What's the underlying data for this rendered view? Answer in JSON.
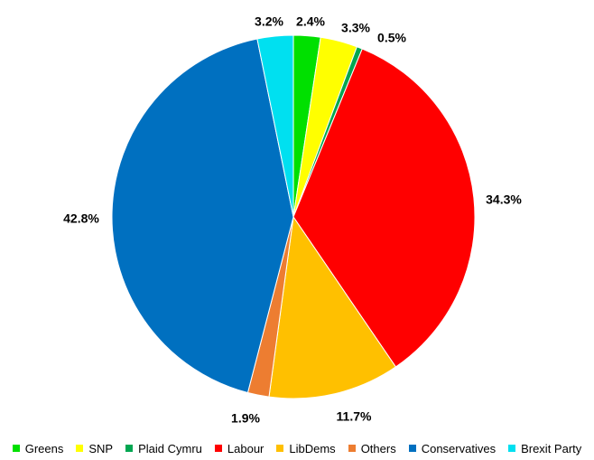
{
  "chart_data": {
    "type": "pie",
    "start_angle_deg": 0,
    "direction": "clockwise",
    "legend_position": "bottom",
    "series": [
      {
        "name": "Greens",
        "value": 2.4,
        "label": "2.4%",
        "color": "#00e000"
      },
      {
        "name": "SNP",
        "value": 3.3,
        "label": "3.3%",
        "color": "#ffff00"
      },
      {
        "name": "Plaid Cymru",
        "value": 0.5,
        "label": "0.5%",
        "color": "#00a651"
      },
      {
        "name": "Labour",
        "value": 34.3,
        "label": "34.3%",
        "color": "#ff0000"
      },
      {
        "name": "LibDems",
        "value": 11.7,
        "label": "11.7%",
        "color": "#ffc000"
      },
      {
        "name": "Others",
        "value": 1.9,
        "label": "1.9%",
        "color": "#ed7d31"
      },
      {
        "name": "Conservatives",
        "value": 42.8,
        "label": "42.8%",
        "color": "#0070c0"
      },
      {
        "name": "Brexit Party",
        "value": 3.2,
        "label": "3.2%",
        "color": "#00e0f0"
      }
    ]
  }
}
